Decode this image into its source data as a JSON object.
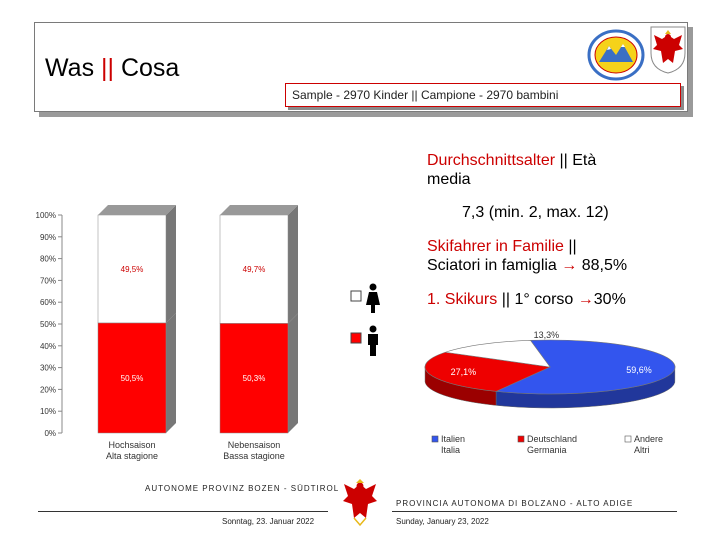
{
  "header": {
    "title_part1": "Was ",
    "title_sep": "||",
    "title_part2": " Cosa",
    "sample": "Sample - 2970 Kinder || Campione - 2970 bambini"
  },
  "info": {
    "avg_age_label_de": "Durchschnittsalter ",
    "avg_age_sep": "||",
    "avg_age_label_it_1": " Età",
    "avg_age_label_it_2": "media",
    "avg_age_value": "7,3 (min. 2, max. 12)",
    "ski_family_de": "Skifahrer in Familie ",
    "ski_family_sep": "||",
    "ski_family_it": "Sciatori in famiglia",
    "ski_family_arrow": "→",
    "ski_family_value": " 88,5%",
    "first_course_de": "1. Skikurs ",
    "first_course_sep": "||",
    "first_course_it": " 1° corso ",
    "first_course_arrow": "→",
    "first_course_value": "30%"
  },
  "gender_legend": {
    "female_icon": "female-icon",
    "male_icon": "male-icon"
  },
  "chart_data": [
    {
      "type": "bar",
      "stacked": true,
      "categories": [
        "Hochsaison\nAlta stagione",
        "Nebensaison\nBassa stagione"
      ],
      "category_lines": [
        [
          "Hochsaison",
          "Alta stagione"
        ],
        [
          "Nebensaison",
          "Bassa stagione"
        ]
      ],
      "series": [
        {
          "values": [
            50.5,
            50.3
          ],
          "labels": [
            "50,5%",
            "50,3%"
          ],
          "color": "#ff0000"
        },
        {
          "values": [
            49.5,
            49.7
          ],
          "labels": [
            "49,5%",
            "49,7%"
          ],
          "color": "#ffffff"
        }
      ],
      "y_ticks": [
        "0%",
        "10%",
        "20%",
        "30%",
        "40%",
        "50%",
        "60%",
        "70%",
        "80%",
        "90%",
        "100%"
      ],
      "ylim": [
        0,
        100
      ],
      "grid": false
    },
    {
      "type": "pie",
      "style": "3d",
      "slices": [
        {
          "value": 59.6,
          "label": "59,6%",
          "color": "#3355ee"
        },
        {
          "value": 27.1,
          "label": "27,1%",
          "color": "#ee0000"
        },
        {
          "value": 13.3,
          "label": "13,3%",
          "color": "#ffffff"
        }
      ],
      "legend": [
        {
          "line1": "Italien",
          "line2": "Italia",
          "color": "#3355ee"
        },
        {
          "line1": "Deutschland",
          "line2": "Germania",
          "color": "#ee0000"
        },
        {
          "line1": "Andere",
          "line2": "Altri",
          "color": "#ffffff"
        }
      ],
      "legend_position": "bottom"
    }
  ],
  "footer": {
    "left_org": "AUTONOME PROVINZ BOZEN - SÜDTIROL",
    "left_date": "Sonntag, 23. Januar 2022",
    "right_org": "PROVINCIA AUTONOMA DI BOLZANO - ALTO ADIGE",
    "right_date": "Sunday, January 23, 2022"
  },
  "colors": {
    "accent_red": "#cc0000",
    "pie_blue": "#3355ee",
    "bar_gray": "#888888"
  }
}
